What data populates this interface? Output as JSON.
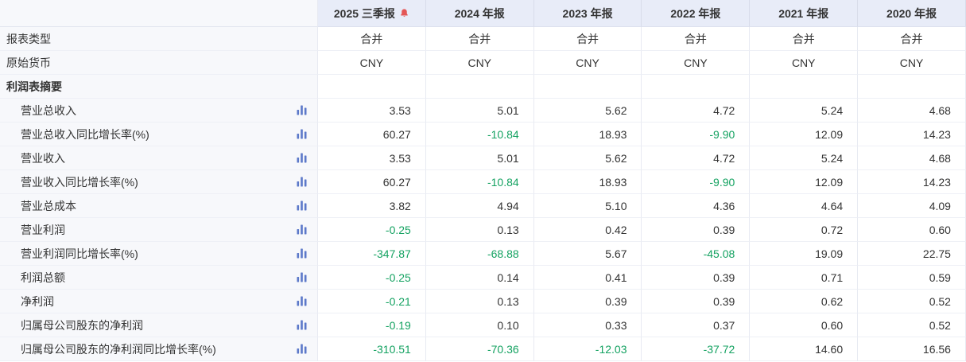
{
  "table": {
    "columns": [
      {
        "id": "2025-q3",
        "label": "2025 三季报",
        "bell": true
      },
      {
        "id": "2024",
        "label": "2024 年报",
        "bell": false
      },
      {
        "id": "2023",
        "label": "2023 年报",
        "bell": false
      },
      {
        "id": "2022",
        "label": "2022 年报",
        "bell": false
      },
      {
        "id": "2021",
        "label": "2021 年报",
        "bell": false
      },
      {
        "id": "2020",
        "label": "2020 年报",
        "bell": false
      }
    ],
    "rows": [
      {
        "label": "报表类型",
        "type": "info",
        "chart_icon": false,
        "values": [
          "合并",
          "合并",
          "合并",
          "合并",
          "合并",
          "合并"
        ]
      },
      {
        "label": "原始货币",
        "type": "info",
        "chart_icon": false,
        "values": [
          "CNY",
          "CNY",
          "CNY",
          "CNY",
          "CNY",
          "CNY"
        ]
      },
      {
        "label": "利润表摘要",
        "type": "section",
        "chart_icon": false,
        "values": [
          "",
          "",
          "",
          "",
          "",
          ""
        ]
      },
      {
        "label": "营业总收入",
        "type": "metric",
        "chart_icon": true,
        "values": [
          "3.53",
          "5.01",
          "5.62",
          "4.72",
          "5.24",
          "4.68"
        ]
      },
      {
        "label": "营业总收入同比增长率(%)",
        "type": "metric",
        "chart_icon": true,
        "values": [
          "60.27",
          "-10.84",
          "18.93",
          "-9.90",
          "12.09",
          "14.23"
        ]
      },
      {
        "label": "营业收入",
        "type": "metric",
        "chart_icon": true,
        "values": [
          "3.53",
          "5.01",
          "5.62",
          "4.72",
          "5.24",
          "4.68"
        ]
      },
      {
        "label": "营业收入同比增长率(%)",
        "type": "metric",
        "chart_icon": true,
        "values": [
          "60.27",
          "-10.84",
          "18.93",
          "-9.90",
          "12.09",
          "14.23"
        ]
      },
      {
        "label": "营业总成本",
        "type": "metric",
        "chart_icon": true,
        "values": [
          "3.82",
          "4.94",
          "5.10",
          "4.36",
          "4.64",
          "4.09"
        ]
      },
      {
        "label": "营业利润",
        "type": "metric",
        "chart_icon": true,
        "values": [
          "-0.25",
          "0.13",
          "0.42",
          "0.39",
          "0.72",
          "0.60"
        ]
      },
      {
        "label": "营业利润同比增长率(%)",
        "type": "metric",
        "chart_icon": true,
        "values": [
          "-347.87",
          "-68.88",
          "5.67",
          "-45.08",
          "19.09",
          "22.75"
        ]
      },
      {
        "label": "利润总额",
        "type": "metric",
        "chart_icon": true,
        "values": [
          "-0.25",
          "0.14",
          "0.41",
          "0.39",
          "0.71",
          "0.59"
        ]
      },
      {
        "label": "净利润",
        "type": "metric",
        "chart_icon": true,
        "values": [
          "-0.21",
          "0.13",
          "0.39",
          "0.39",
          "0.62",
          "0.52"
        ]
      },
      {
        "label": "归属母公司股东的净利润",
        "type": "metric",
        "chart_icon": true,
        "values": [
          "-0.19",
          "0.10",
          "0.33",
          "0.37",
          "0.60",
          "0.52"
        ]
      },
      {
        "label": "归属母公司股东的净利润同比增长率(%)",
        "type": "metric",
        "chart_icon": true,
        "values": [
          "-310.51",
          "-70.36",
          "-12.03",
          "-37.72",
          "14.60",
          "16.56"
        ]
      }
    ]
  },
  "colors": {
    "negative_value": "#14a261",
    "value_text": "#333333",
    "header_bg": "#e8ecf8",
    "label_col_bg": "#f7f8fb",
    "bell_icon": "#e45656",
    "chart_icon": "#5c79c9"
  },
  "icons": {
    "alert_bell": "alert-bell-icon",
    "bar_chart": "bar-chart-icon"
  }
}
